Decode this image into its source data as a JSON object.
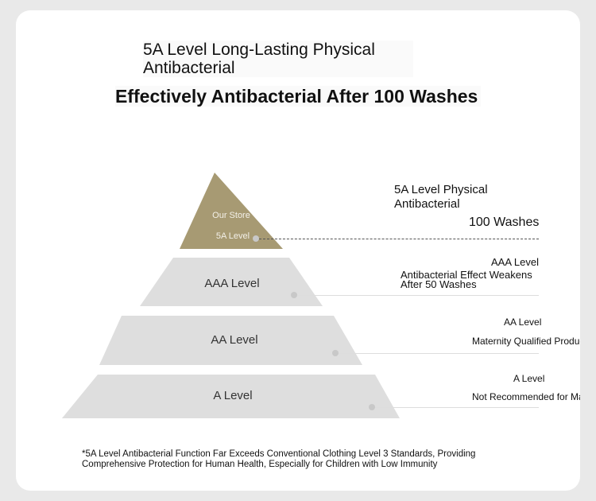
{
  "header": {
    "title_line": "5A Level Long-Lasting Physical Antibacterial",
    "headline": "Effectively Antibacterial After 100 Washes"
  },
  "pyramid": {
    "top": {
      "store": "Our Store",
      "level": "5A Level"
    },
    "tiers": [
      {
        "label": "AAA Level"
      },
      {
        "label": "AA Level"
      },
      {
        "label": "A Level"
      }
    ]
  },
  "right_notes": {
    "five_a": {
      "title": "5A Level Physical Antibacterial",
      "washes": "100 Washes"
    },
    "aaa": {
      "level": "AAA Level",
      "desc": "Antibacterial Effect Weakens After 50 Washes"
    },
    "aa": {
      "level": "AA Level",
      "desc": "Maternity Qualified Product"
    },
    "a": {
      "level": "A Level",
      "desc": "Not Recommended for Maternity"
    }
  },
  "footnote": "*5A Level Antibacterial Function Far Exceeds Conventional Clothing Level 3 Standards, Providing Comprehensive Protection for Human Health, Especially for Children with Low Immunity",
  "colors": {
    "gold": "#a79a73",
    "tier_gray": "#dedede",
    "card": "#ffffff",
    "background": "#e9e9e9"
  }
}
